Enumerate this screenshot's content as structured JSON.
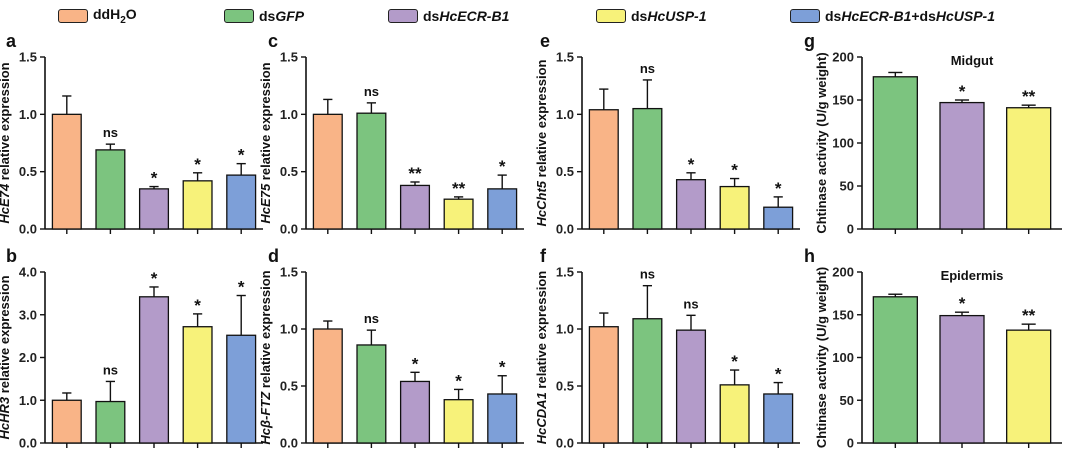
{
  "legend": [
    {
      "key": "ddH2O",
      "color": "#f9b487"
    },
    {
      "key": "dsGFP",
      "color": "#7cc47f"
    },
    {
      "key": "dsHcECR-B1",
      "color": "#b39bc9"
    },
    {
      "key": "dsHcUSP-1",
      "color": "#f7f27a"
    },
    {
      "key": "dsHcECR-B1+dsHcUSP-1",
      "color": "#7d9fd8"
    }
  ],
  "chart_data": [
    {
      "id": "a",
      "type": "bar",
      "ylabel": "HcE74 relative expression",
      "title": "",
      "ylim": [
        0,
        1.5
      ],
      "yticks": [
        "0.0",
        "0.5",
        "1.0",
        "1.5"
      ],
      "groups": [
        "ddH2O",
        "dsGFP",
        "dsHcECR-B1",
        "dsHcUSP-1",
        "dsHcECR-B1+dsHcUSP-1"
      ],
      "values": [
        1.0,
        0.69,
        0.35,
        0.42,
        0.47
      ],
      "errors": [
        0.16,
        0.05,
        0.02,
        0.07,
        0.1
      ],
      "labels": [
        "",
        "ns",
        "*",
        "*",
        "*"
      ]
    },
    {
      "id": "b",
      "type": "bar",
      "ylabel": "HcHR3 relative expression",
      "title": "",
      "ylim": [
        0,
        4.0
      ],
      "yticks": [
        "0.0",
        "1.0",
        "2.0",
        "3.0",
        "4.0"
      ],
      "groups": [
        "ddH2O",
        "dsGFP",
        "dsHcECR-B1",
        "dsHcUSP-1",
        "dsHcECR-B1+dsHcUSP-1"
      ],
      "values": [
        1.0,
        0.97,
        3.42,
        2.72,
        2.52
      ],
      "errors": [
        0.17,
        0.47,
        0.23,
        0.3,
        0.93
      ],
      "labels": [
        "",
        "ns",
        "*",
        "*",
        "*"
      ]
    },
    {
      "id": "c",
      "type": "bar",
      "ylabel": "HcE75 relative expression",
      "title": "",
      "ylim": [
        0,
        1.5
      ],
      "yticks": [
        "0.0",
        "0.5",
        "1.0",
        "1.5"
      ],
      "groups": [
        "ddH2O",
        "dsGFP",
        "dsHcECR-B1",
        "dsHcUSP-1",
        "dsHcECR-B1+dsHcUSP-1"
      ],
      "values": [
        1.0,
        1.01,
        0.38,
        0.26,
        0.35
      ],
      "errors": [
        0.13,
        0.09,
        0.03,
        0.02,
        0.12
      ],
      "labels": [
        "",
        "ns",
        "**",
        "**",
        "*"
      ]
    },
    {
      "id": "d",
      "type": "bar",
      "ylabel": "Hcβ-FTZ relative expression",
      "title": "",
      "ylim": [
        0,
        1.5
      ],
      "yticks": [
        "0.0",
        "0.5",
        "1.0",
        "1.5"
      ],
      "groups": [
        "ddH2O",
        "dsGFP",
        "dsHcECR-B1",
        "dsHcUSP-1",
        "dsHcECR-B1+dsHcUSP-1"
      ],
      "values": [
        1.0,
        0.86,
        0.54,
        0.38,
        0.43
      ],
      "errors": [
        0.07,
        0.13,
        0.08,
        0.09,
        0.16
      ],
      "labels": [
        "",
        "ns",
        "*",
        "*",
        "*"
      ]
    },
    {
      "id": "e",
      "type": "bar",
      "ylabel": "HcCht5 relative expression",
      "title": "",
      "ylim": [
        0,
        1.5
      ],
      "yticks": [
        "0.0",
        "0.5",
        "1.0",
        "1.5"
      ],
      "groups": [
        "ddH2O",
        "dsGFP",
        "dsHcECR-B1",
        "dsHcUSP-1",
        "dsHcECR-B1+dsHcUSP-1"
      ],
      "values": [
        1.04,
        1.05,
        0.43,
        0.37,
        0.19
      ],
      "errors": [
        0.18,
        0.25,
        0.06,
        0.07,
        0.09
      ],
      "labels": [
        "",
        "ns",
        "*",
        "*",
        "*"
      ]
    },
    {
      "id": "f",
      "type": "bar",
      "ylabel": "HcCDA1 relative expression",
      "title": "",
      "ylim": [
        0,
        1.5
      ],
      "yticks": [
        "0.0",
        "0.5",
        "1.0",
        "1.5"
      ],
      "groups": [
        "ddH2O",
        "dsGFP",
        "dsHcECR-B1",
        "dsHcUSP-1",
        "dsHcECR-B1+dsHcUSP-1"
      ],
      "values": [
        1.02,
        1.09,
        0.99,
        0.51,
        0.43
      ],
      "errors": [
        0.12,
        0.29,
        0.13,
        0.13,
        0.1
      ],
      "labels": [
        "",
        "ns",
        "ns",
        "*",
        "*"
      ]
    },
    {
      "id": "g",
      "type": "bar",
      "ylabel": "Chtinase activity (U/g weight)",
      "title": "Midgut",
      "ylim": [
        0,
        200
      ],
      "yticks": [
        "0",
        "50",
        "100",
        "150",
        "200"
      ],
      "groups": [
        "dsGFP",
        "dsHcECR-B1",
        "dsHcUSP-1"
      ],
      "values": [
        177,
        147,
        141
      ],
      "errors": [
        5,
        3,
        3
      ],
      "labels": [
        "",
        "*",
        "**"
      ]
    },
    {
      "id": "h",
      "type": "bar",
      "ylabel": "Chtinase activity (U/g weight)",
      "title": "Epidermis",
      "ylim": [
        0,
        200
      ],
      "yticks": [
        "0",
        "50",
        "100",
        "150",
        "200"
      ],
      "groups": [
        "dsGFP",
        "dsHcECR-B1",
        "dsHcUSP-1"
      ],
      "values": [
        171,
        149,
        132
      ],
      "errors": [
        3,
        4,
        7
      ],
      "labels": [
        "",
        "*",
        "**"
      ]
    }
  ]
}
